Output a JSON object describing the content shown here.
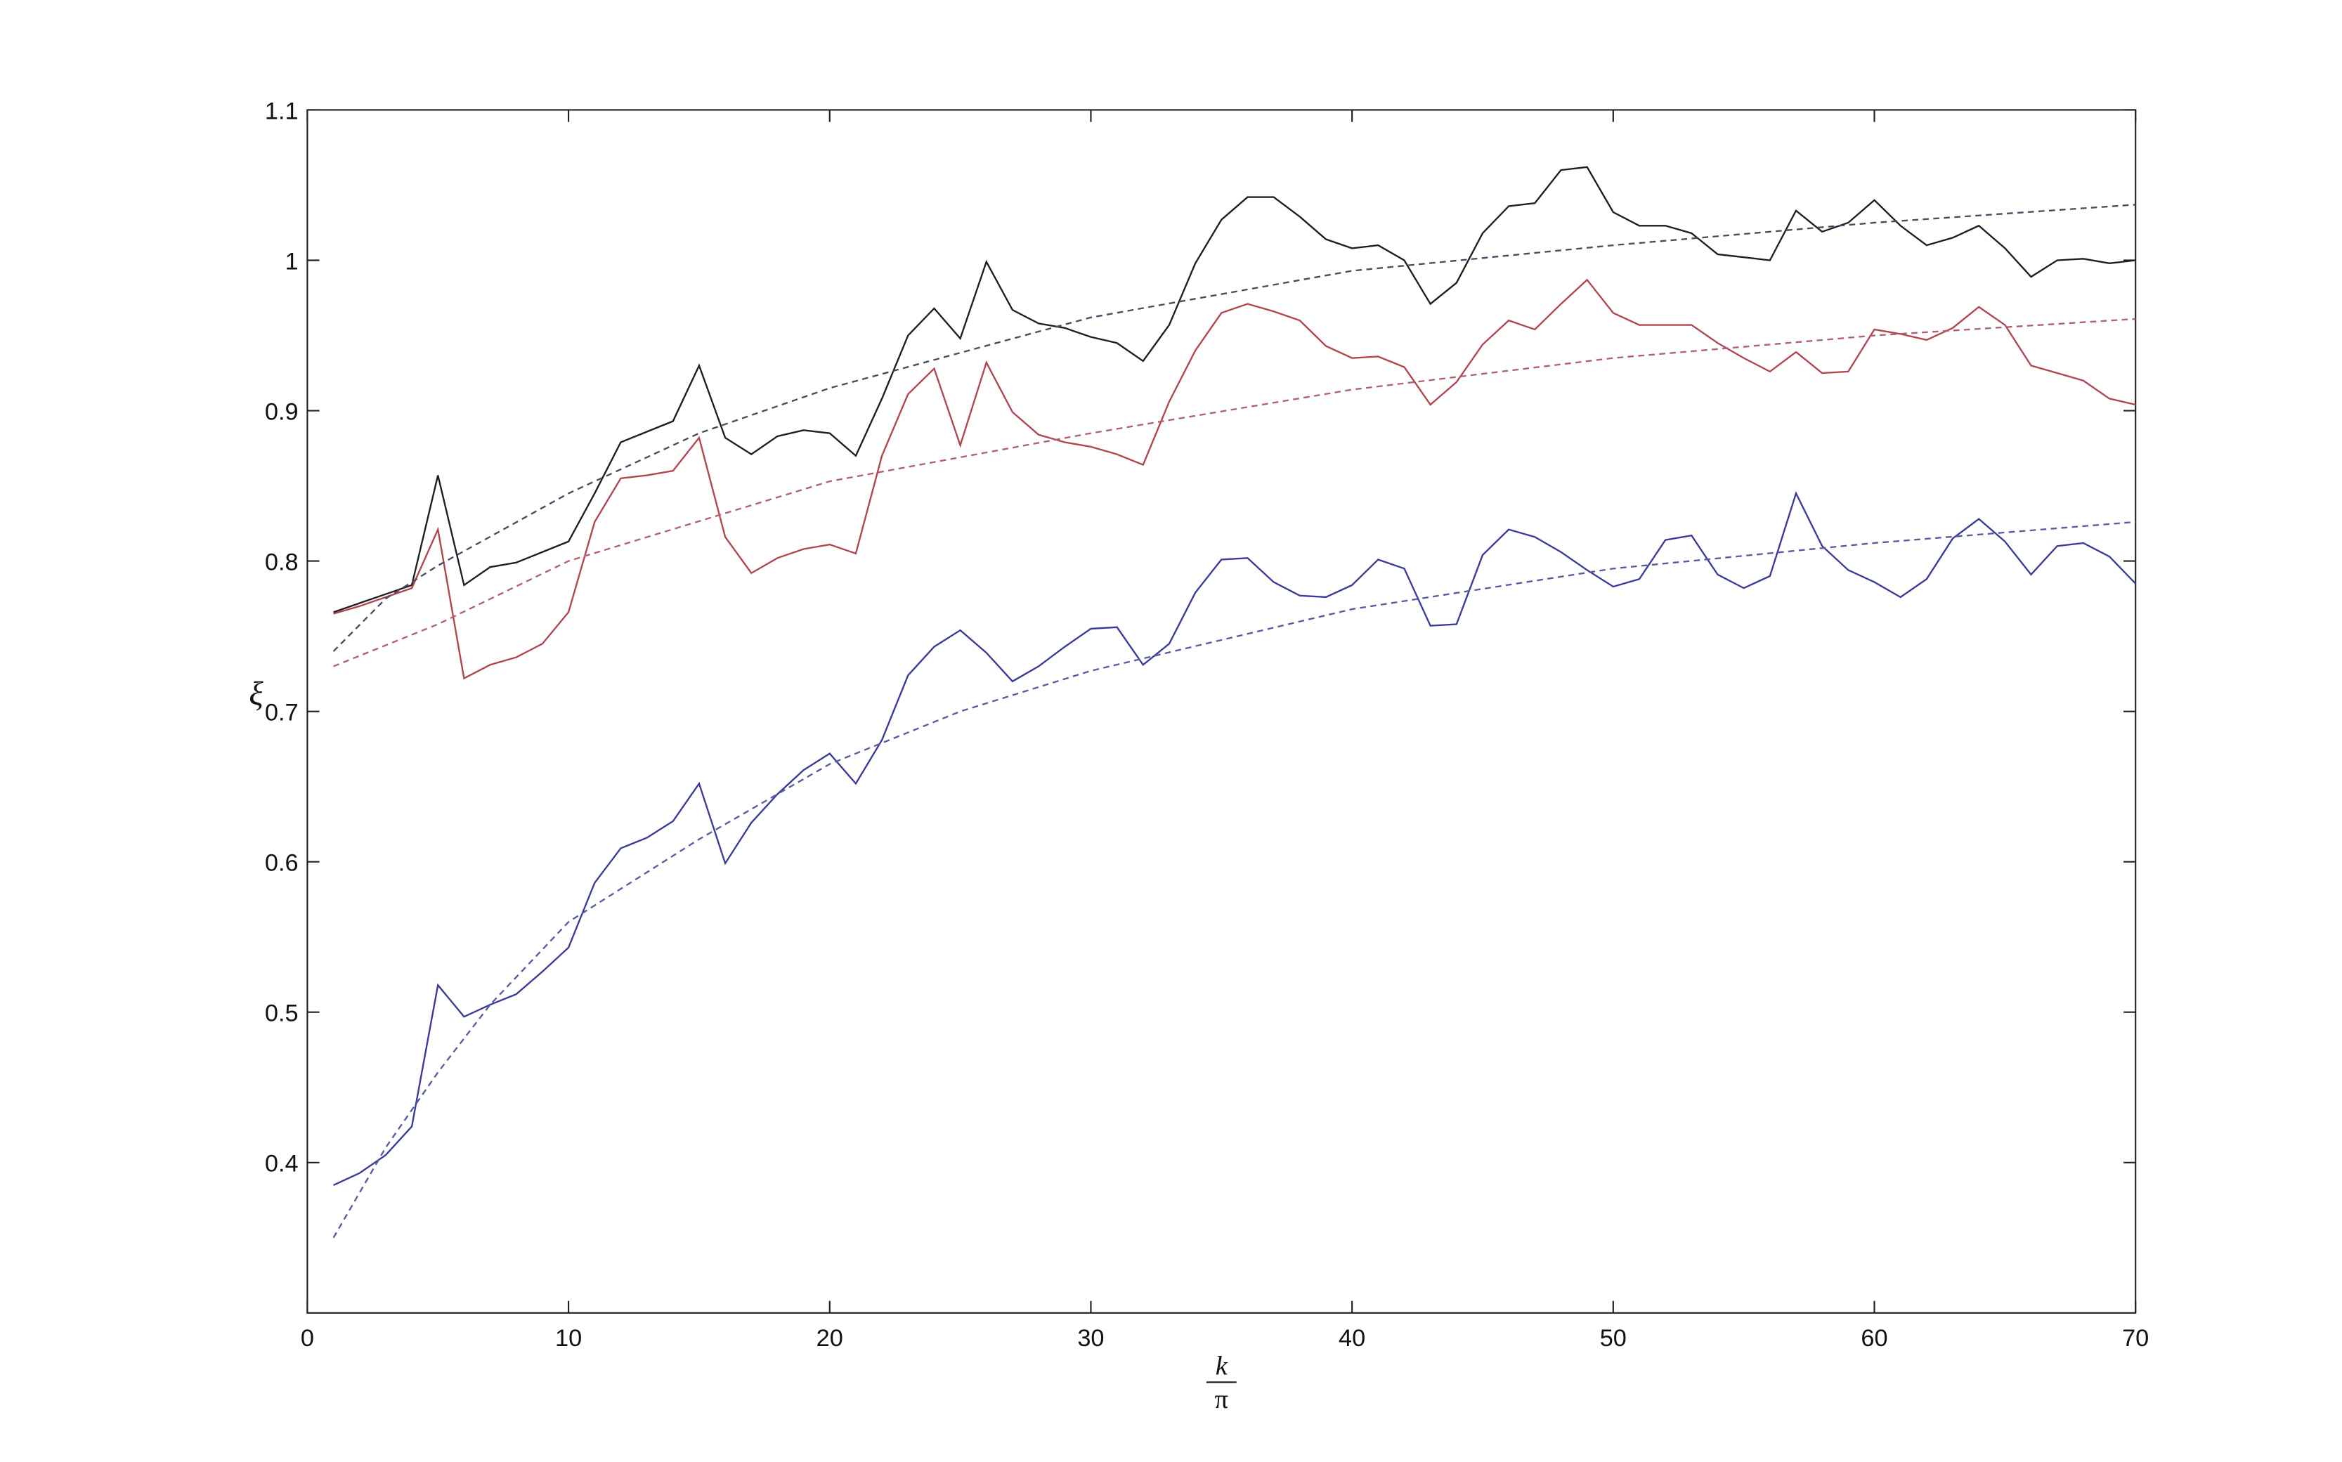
{
  "chart_data": {
    "type": "line",
    "xlabel": {
      "numerator": "k",
      "denominator": "π"
    },
    "ylabel": "ξ",
    "xlim": [
      0,
      70
    ],
    "xticks": [
      0,
      10,
      20,
      30,
      40,
      50,
      60,
      70
    ],
    "ylim": [
      0.3,
      1.1
    ],
    "yticks": [
      0.4,
      0.5,
      0.6,
      0.7,
      0.8,
      0.9,
      1,
      1.1
    ],
    "series": [
      {
        "color": "#1e1e1e",
        "dash": false,
        "x": [
          1,
          2,
          3,
          4,
          5,
          6,
          7,
          8,
          9,
          10,
          11,
          12,
          13,
          14,
          15,
          16,
          17,
          18,
          19,
          20,
          21,
          22,
          23,
          24,
          25,
          26,
          27,
          28,
          29,
          30,
          31,
          32,
          33,
          34,
          35,
          36,
          37,
          38,
          39,
          40,
          41,
          42,
          43,
          44,
          45,
          46,
          47,
          48,
          49,
          50,
          51,
          52,
          53,
          54,
          55,
          56,
          57,
          58,
          59,
          60,
          61,
          62,
          63,
          64,
          65,
          66,
          67,
          68,
          69,
          70
        ],
        "values": [
          0.766,
          0.772,
          0.778,
          0.784,
          0.857,
          0.784,
          0.796,
          0.799,
          0.806,
          0.813,
          0.845,
          0.879,
          0.886,
          0.893,
          0.93,
          0.882,
          0.871,
          0.883,
          0.887,
          0.885,
          0.87,
          0.908,
          0.95,
          0.968,
          0.948,
          0.999,
          0.967,
          0.958,
          0.955,
          0.949,
          0.945,
          0.933,
          0.957,
          0.998,
          1.027,
          1.042,
          1.042,
          1.029,
          1.014,
          1.008,
          1.01,
          1.0,
          0.971,
          0.985,
          1.018,
          1.036,
          1.038,
          1.06,
          1.062,
          1.032,
          1.023,
          1.023,
          1.018,
          1.004,
          1.002,
          1.0,
          1.033,
          1.019,
          1.025,
          1.04,
          1.023,
          1.01,
          1.015,
          1.023,
          1.008,
          0.989,
          1.0,
          1.001,
          0.998,
          1.0
        ]
      },
      {
        "color": "#b0454f",
        "dash": false,
        "x": [
          1,
          2,
          3,
          4,
          5,
          6,
          7,
          8,
          9,
          10,
          11,
          12,
          13,
          14,
          15,
          16,
          17,
          18,
          19,
          20,
          21,
          22,
          23,
          24,
          25,
          26,
          27,
          28,
          29,
          30,
          31,
          32,
          33,
          34,
          35,
          36,
          37,
          38,
          39,
          40,
          41,
          42,
          43,
          44,
          45,
          46,
          47,
          48,
          49,
          50,
          51,
          52,
          53,
          54,
          55,
          56,
          57,
          58,
          59,
          60,
          61,
          62,
          63,
          64,
          65,
          66,
          67,
          68,
          69,
          70
        ],
        "values": [
          0.765,
          0.77,
          0.776,
          0.782,
          0.821,
          0.722,
          0.731,
          0.736,
          0.745,
          0.766,
          0.826,
          0.855,
          0.857,
          0.86,
          0.882,
          0.816,
          0.792,
          0.802,
          0.808,
          0.811,
          0.805,
          0.87,
          0.911,
          0.928,
          0.877,
          0.932,
          0.899,
          0.884,
          0.879,
          0.876,
          0.871,
          0.864,
          0.906,
          0.94,
          0.965,
          0.971,
          0.966,
          0.96,
          0.943,
          0.935,
          0.936,
          0.929,
          0.904,
          0.919,
          0.944,
          0.96,
          0.954,
          0.971,
          0.987,
          0.965,
          0.957,
          0.957,
          0.957,
          0.945,
          0.935,
          0.926,
          0.939,
          0.925,
          0.926,
          0.954,
          0.951,
          0.947,
          0.955,
          0.969,
          0.957,
          0.93,
          0.925,
          0.92,
          0.908,
          0.904
        ]
      },
      {
        "color": "#3a3a99",
        "dash": false,
        "x": [
          1,
          2,
          3,
          4,
          5,
          6,
          7,
          8,
          9,
          10,
          11,
          12,
          13,
          14,
          15,
          16,
          17,
          18,
          19,
          20,
          21,
          22,
          23,
          24,
          25,
          26,
          27,
          28,
          29,
          30,
          31,
          32,
          33,
          34,
          35,
          36,
          37,
          38,
          39,
          40,
          41,
          42,
          43,
          44,
          45,
          46,
          47,
          48,
          49,
          50,
          51,
          52,
          53,
          54,
          55,
          56,
          57,
          58,
          59,
          60,
          61,
          62,
          63,
          64,
          65,
          66,
          67,
          68,
          69,
          70
        ],
        "values": [
          0.385,
          0.393,
          0.405,
          0.424,
          0.518,
          0.497,
          0.505,
          0.512,
          0.527,
          0.543,
          0.586,
          0.609,
          0.616,
          0.627,
          0.652,
          0.599,
          0.626,
          0.645,
          0.661,
          0.672,
          0.652,
          0.681,
          0.724,
          0.743,
          0.754,
          0.739,
          0.72,
          0.73,
          0.743,
          0.755,
          0.756,
          0.731,
          0.745,
          0.779,
          0.801,
          0.802,
          0.786,
          0.777,
          0.776,
          0.784,
          0.801,
          0.795,
          0.757,
          0.758,
          0.804,
          0.821,
          0.816,
          0.806,
          0.794,
          0.783,
          0.788,
          0.814,
          0.817,
          0.791,
          0.782,
          0.79,
          0.845,
          0.81,
          0.794,
          0.786,
          0.776,
          0.788,
          0.815,
          0.828,
          0.813,
          0.791,
          0.81,
          0.812,
          0.803,
          0.785
        ]
      },
      {
        "color": "#4a4a66",
        "dash": true,
        "x": [
          1,
          3,
          5,
          10,
          15,
          20,
          30,
          40,
          50,
          60,
          70
        ],
        "values": [
          0.74,
          0.775,
          0.797,
          0.845,
          0.885,
          0.915,
          0.962,
          0.993,
          1.01,
          1.025,
          1.037
        ]
      },
      {
        "color": "#b06070",
        "dash": true,
        "x": [
          1,
          5,
          10,
          20,
          30,
          40,
          50,
          60,
          70
        ],
        "values": [
          0.73,
          0.758,
          0.8,
          0.853,
          0.885,
          0.914,
          0.935,
          0.95,
          0.961
        ]
      },
      {
        "color": "#5a5aa0",
        "dash": true,
        "x": [
          1,
          3,
          5,
          7,
          10,
          15,
          20,
          25,
          30,
          40,
          50,
          60,
          70
        ],
        "values": [
          0.35,
          0.41,
          0.46,
          0.505,
          0.56,
          0.615,
          0.665,
          0.7,
          0.727,
          0.768,
          0.795,
          0.812,
          0.826
        ]
      }
    ]
  }
}
